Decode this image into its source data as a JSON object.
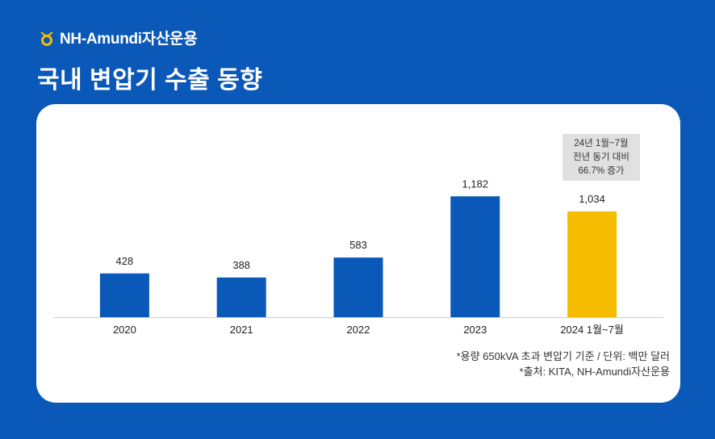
{
  "header": {
    "brand_name": "NH-Amundi자산운용",
    "title": "국내 변압기 수출 동향"
  },
  "colors": {
    "background": "#0a58b8",
    "bar_default": "#0a58b8",
    "bar_highlight": "#f5bd00",
    "brand_icon": "#f5bd00"
  },
  "chart_data": {
    "type": "bar",
    "title": "국내 변압기 수출 동향",
    "categories": [
      "2020",
      "2021",
      "2022",
      "2023",
      "2024 1월~7월"
    ],
    "values": [
      428,
      388,
      583,
      1182,
      1034
    ],
    "value_labels": [
      "428",
      "388",
      "583",
      "1,182",
      "1,034"
    ],
    "highlight_index": 4,
    "ylabel": "백만 달러",
    "xlabel": "",
    "ylim": [
      0,
      1200
    ],
    "grid": false,
    "annotation": [
      "24년 1월~7월",
      "전년 동기 대비",
      "66.7% 증가"
    ]
  },
  "footnotes": [
    "*용량 650kVA 초과 변압기 기준 / 단위: 백만 달러",
    "*출처: KITA, NH-Amundi자산운용"
  ]
}
